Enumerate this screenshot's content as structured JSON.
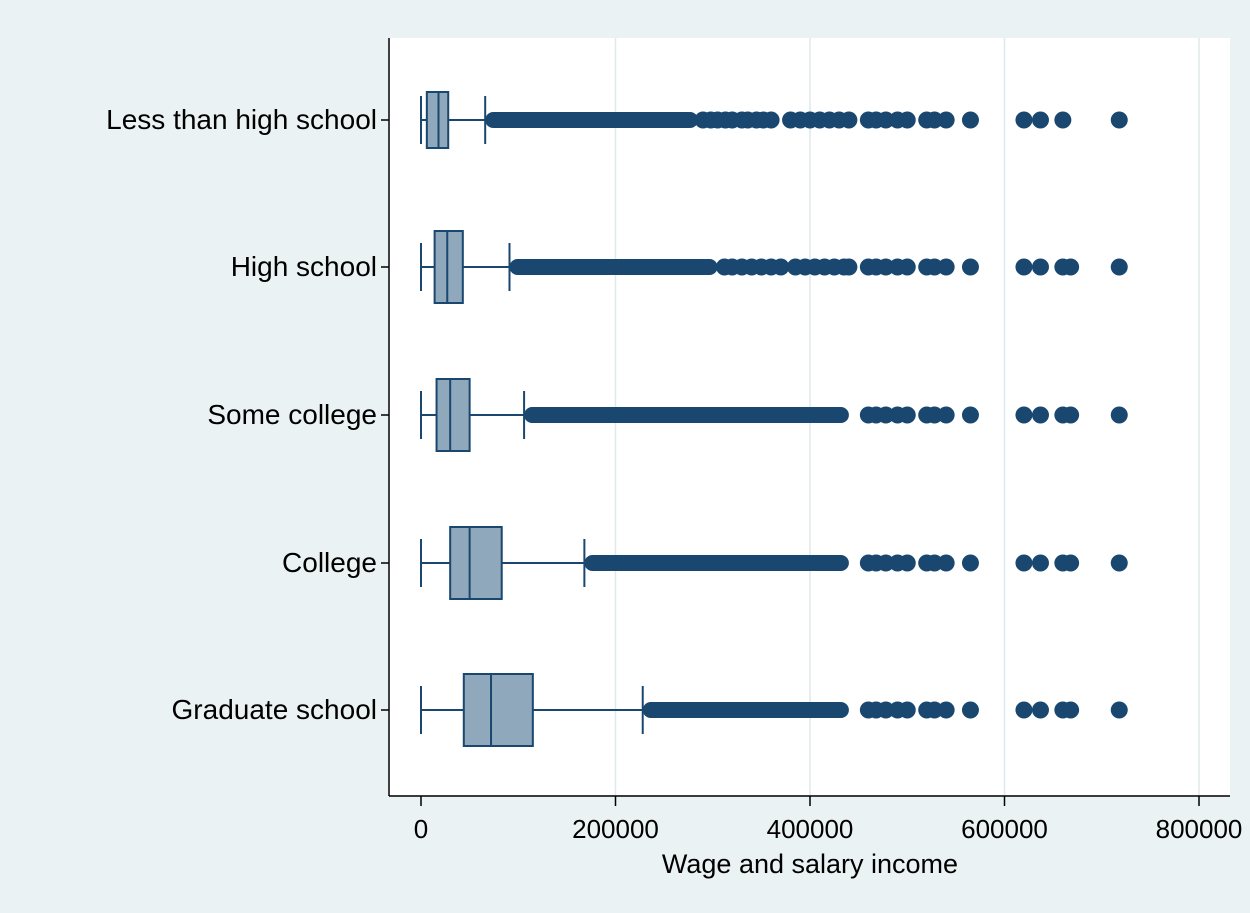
{
  "chart_data": {
    "type": "boxplot",
    "orientation": "horizontal",
    "xlabel": "Wage and salary income",
    "ylabel": "",
    "xlim": [
      -5000,
      800000
    ],
    "xticks": [
      0,
      200000,
      400000,
      600000,
      800000
    ],
    "xtick_labels": [
      "0",
      "200000",
      "400000",
      "600000",
      "800000"
    ],
    "grid": true,
    "legend": "none",
    "categories": [
      "Less than high school",
      "High school",
      "Some college",
      "College",
      "Graduate school"
    ],
    "boxes": [
      {
        "category": "Less than high school",
        "whisker_low": 0,
        "q1": 6000,
        "median": 18000,
        "q3": 28000,
        "whisker_high": 66000,
        "dense_outliers": [
          66000,
          285000
        ],
        "outliers": [
          290000,
          298000,
          305000,
          313000,
          320000,
          330000,
          336000,
          345000,
          352000,
          360000,
          380000,
          390000,
          400000,
          410000,
          420000,
          430000,
          440000,
          460000,
          468000,
          478000,
          490000,
          500000,
          520000,
          528000,
          540000,
          565000,
          620000,
          637000,
          660000,
          718000
        ]
      },
      {
        "category": "High school",
        "whisker_low": 0,
        "q1": 14000,
        "median": 27000,
        "q3": 43000,
        "whisker_high": 91000,
        "dense_outliers": [
          91000,
          305000
        ],
        "outliers": [
          312000,
          320000,
          330000,
          340000,
          350000,
          360000,
          370000,
          385000,
          395000,
          405000,
          415000,
          425000,
          435000,
          440000,
          460000,
          468000,
          478000,
          490000,
          500000,
          520000,
          528000,
          540000,
          565000,
          620000,
          637000,
          660000,
          668000,
          718000
        ]
      },
      {
        "category": "Some college",
        "whisker_low": 0,
        "q1": 16000,
        "median": 30000,
        "q3": 50000,
        "whisker_high": 106000,
        "dense_outliers": [
          106000,
          440000
        ],
        "outliers": [
          460000,
          468000,
          478000,
          490000,
          500000,
          520000,
          528000,
          540000,
          565000,
          620000,
          637000,
          660000,
          668000,
          718000
        ]
      },
      {
        "category": "College",
        "whisker_low": 0,
        "q1": 30000,
        "median": 50000,
        "q3": 83000,
        "whisker_high": 168000,
        "dense_outliers": [
          168000,
          440000
        ],
        "outliers": [
          460000,
          468000,
          478000,
          490000,
          500000,
          520000,
          528000,
          540000,
          565000,
          620000,
          637000,
          660000,
          668000,
          718000
        ]
      },
      {
        "category": "Graduate school",
        "whisker_low": 0,
        "q1": 44000,
        "median": 72000,
        "q3": 115000,
        "whisker_high": 228000,
        "dense_outliers": [
          228000,
          440000
        ],
        "outliers": [
          460000,
          468000,
          478000,
          490000,
          500000,
          520000,
          528000,
          540000,
          565000,
          620000,
          637000,
          660000,
          668000,
          718000
        ]
      }
    ],
    "colors": {
      "box_fill": "#90a8bc",
      "box_stroke": "#1a476f",
      "marker": "#1a476f",
      "grid": "#dfe9ec",
      "plot_bg": "#ffffff",
      "page_bg": "#eaf2f3"
    }
  }
}
